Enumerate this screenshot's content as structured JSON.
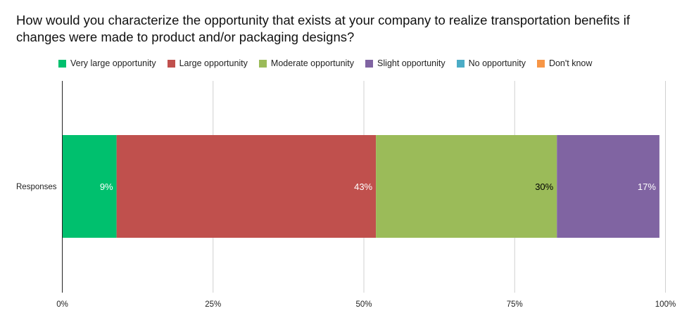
{
  "chart_data": {
    "type": "bar",
    "orientation": "horizontal",
    "stacked": true,
    "title": "How would you characterize the opportunity that exists at your company to realize transportation benefits if changes were made to product and/or packaging designs?",
    "categories": [
      "Responses"
    ],
    "series": [
      {
        "name": "Very large opportunity",
        "values": [
          9
        ],
        "label": "9%",
        "color": "#00c06e",
        "label_color": "#ffffff"
      },
      {
        "name": "Large opportunity",
        "values": [
          43
        ],
        "label": "43%",
        "color": "#c0504d",
        "label_color": "#ffffff"
      },
      {
        "name": "Moderate opportunity",
        "values": [
          30
        ],
        "label": "30%",
        "color": "#9bbb59",
        "label_color": "#000000"
      },
      {
        "name": "Slight opportunity",
        "values": [
          17
        ],
        "label": "17%",
        "color": "#8064a2",
        "label_color": "#ffffff"
      },
      {
        "name": "No opportunity",
        "values": [
          0
        ],
        "label": "",
        "color": "#4bacc6",
        "label_color": "#ffffff"
      },
      {
        "name": "Don't know",
        "values": [
          0
        ],
        "label": "",
        "color": "#f79646",
        "label_color": "#ffffff"
      }
    ],
    "xlim": [
      0,
      100
    ],
    "xticks": [
      "0%",
      "25%",
      "50%",
      "75%",
      "100%"
    ],
    "xlabel": "",
    "ylabel": "",
    "grid": true,
    "legend_position": "top"
  }
}
